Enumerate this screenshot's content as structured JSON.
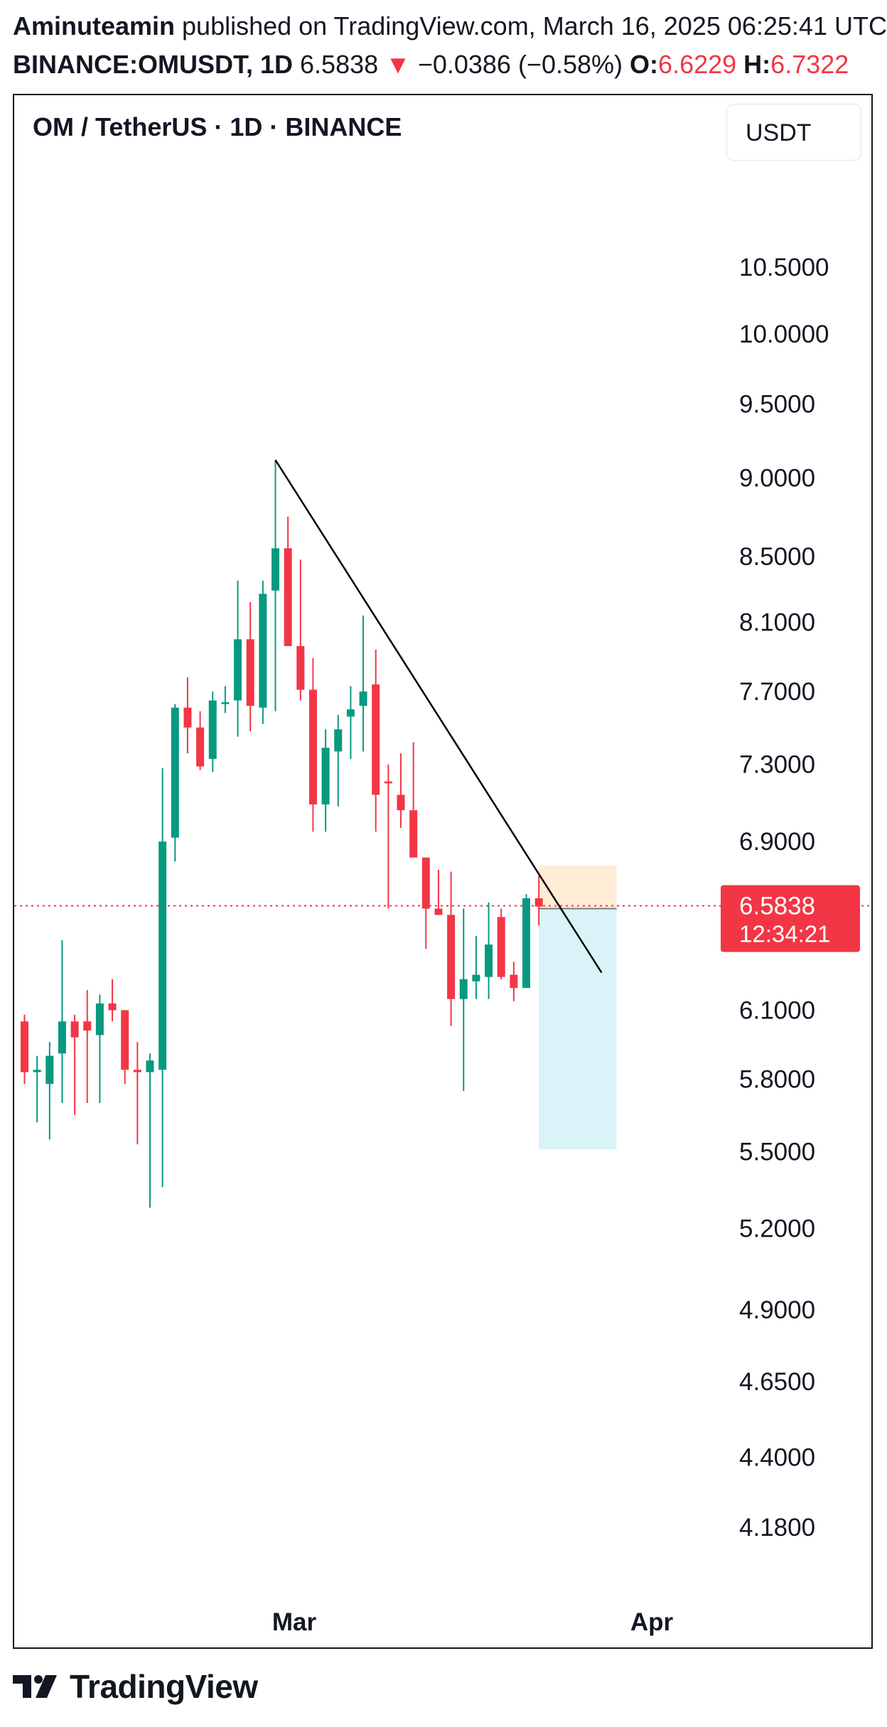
{
  "header": {
    "author": "Aminuteamin",
    "published_text": " published on TradingView.com, March 16, 2025 06:25:41 UTC",
    "symbol": "BINANCE:OMUSDT, 1D",
    "last": "6.5838",
    "change_arrow": "▼",
    "change": "−0.0386 (−0.58%)",
    "open_label": "O:",
    "open": "6.6229",
    "high_label": "H:",
    "high": "6.7322"
  },
  "chart_header": {
    "title": "OM / TetherUS · 1D · BINANCE",
    "currency": "USDT"
  },
  "footer": {
    "brand": "TradingView"
  },
  "colors": {
    "up": "#089981",
    "down": "#f23645",
    "text": "#131722"
  },
  "chart_data": {
    "type": "candlestick",
    "y_scale": "log",
    "ylim": [
      3.92,
      12.1
    ],
    "y_ticks": [
      "10.5000",
      "10.0000",
      "9.5000",
      "9.0000",
      "8.5000",
      "8.1000",
      "7.7000",
      "7.3000",
      "6.9000",
      "6.1000",
      "5.8000",
      "5.5000",
      "5.2000",
      "4.9000",
      "4.6500",
      "4.4000",
      "4.1800"
    ],
    "x_ticks": [
      {
        "index": 21.5,
        "label": "Mar"
      },
      {
        "index": 50,
        "label": "Apr"
      }
    ],
    "last_price": {
      "value": 6.5838,
      "label": "6.5838",
      "countdown": "12:34:21"
    },
    "candles": [
      {
        "o": 6.05,
        "h": 6.08,
        "l": 5.78,
        "c": 5.83
      },
      {
        "o": 5.83,
        "h": 5.9,
        "l": 5.62,
        "c": 5.84
      },
      {
        "o": 5.78,
        "h": 5.96,
        "l": 5.55,
        "c": 5.9
      },
      {
        "o": 5.91,
        "h": 6.42,
        "l": 5.7,
        "c": 6.05
      },
      {
        "o": 6.05,
        "h": 6.08,
        "l": 5.65,
        "c": 5.98
      },
      {
        "o": 6.05,
        "h": 6.19,
        "l": 5.7,
        "c": 6.01
      },
      {
        "o": 5.99,
        "h": 6.17,
        "l": 5.7,
        "c": 6.13
      },
      {
        "o": 6.13,
        "h": 6.24,
        "l": 6.05,
        "c": 6.1
      },
      {
        "o": 6.1,
        "h": 6.1,
        "l": 5.78,
        "c": 5.84
      },
      {
        "o": 5.84,
        "h": 5.96,
        "l": 5.53,
        "c": 5.83
      },
      {
        "o": 5.83,
        "h": 5.91,
        "l": 5.28,
        "c": 5.88
      },
      {
        "o": 5.84,
        "h": 7.28,
        "l": 5.36,
        "c": 6.9
      },
      {
        "o": 6.92,
        "h": 7.63,
        "l": 6.8,
        "c": 7.61
      },
      {
        "o": 7.61,
        "h": 7.78,
        "l": 7.36,
        "c": 7.5
      },
      {
        "o": 7.5,
        "h": 7.59,
        "l": 7.27,
        "c": 7.29
      },
      {
        "o": 7.33,
        "h": 7.7,
        "l": 7.26,
        "c": 7.65
      },
      {
        "o": 7.63,
        "h": 7.73,
        "l": 7.58,
        "c": 7.64
      },
      {
        "o": 7.65,
        "h": 8.35,
        "l": 7.45,
        "c": 8.0
      },
      {
        "o": 8.0,
        "h": 8.22,
        "l": 7.48,
        "c": 7.62
      },
      {
        "o": 7.61,
        "h": 8.35,
        "l": 7.52,
        "c": 8.27
      },
      {
        "o": 8.29,
        "h": 9.12,
        "l": 7.59,
        "c": 8.55
      },
      {
        "o": 8.55,
        "h": 8.75,
        "l": 7.96,
        "c": 7.96
      },
      {
        "o": 7.96,
        "h": 8.48,
        "l": 7.65,
        "c": 7.71
      },
      {
        "o": 7.71,
        "h": 7.89,
        "l": 6.95,
        "c": 7.09
      },
      {
        "o": 7.09,
        "h": 7.49,
        "l": 6.95,
        "c": 7.39
      },
      {
        "o": 7.37,
        "h": 7.57,
        "l": 7.08,
        "c": 7.49
      },
      {
        "o": 7.56,
        "h": 7.73,
        "l": 7.33,
        "c": 7.6
      },
      {
        "o": 7.62,
        "h": 8.14,
        "l": 7.37,
        "c": 7.7
      },
      {
        "o": 7.74,
        "h": 7.94,
        "l": 6.95,
        "c": 7.14
      },
      {
        "o": 7.21,
        "h": 7.3,
        "l": 6.57,
        "c": 7.2
      },
      {
        "o": 7.14,
        "h": 7.36,
        "l": 6.97,
        "c": 7.06
      },
      {
        "o": 7.06,
        "h": 7.42,
        "l": 6.83,
        "c": 6.82
      },
      {
        "o": 6.82,
        "h": 6.82,
        "l": 6.38,
        "c": 6.57
      },
      {
        "o": 6.57,
        "h": 6.76,
        "l": 6.54,
        "c": 6.54
      },
      {
        "o": 6.54,
        "h": 6.75,
        "l": 6.03,
        "c": 6.15
      },
      {
        "o": 6.15,
        "h": 6.57,
        "l": 5.75,
        "c": 6.24
      },
      {
        "o": 6.23,
        "h": 6.44,
        "l": 6.15,
        "c": 6.26
      },
      {
        "o": 6.25,
        "h": 6.6,
        "l": 6.15,
        "c": 6.4
      },
      {
        "o": 6.53,
        "h": 6.57,
        "l": 6.24,
        "c": 6.25
      },
      {
        "o": 6.26,
        "h": 6.32,
        "l": 6.14,
        "c": 6.2
      },
      {
        "o": 6.2,
        "h": 6.64,
        "l": 6.2,
        "c": 6.62
      },
      {
        "o": 6.62,
        "h": 6.73,
        "l": 6.49,
        "c": 6.58
      }
    ],
    "trendline": {
      "from": {
        "index": 20,
        "value": 9.12
      },
      "to": {
        "index": 46,
        "value": 6.27
      }
    },
    "position": {
      "start_index": 41.0,
      "end_index": 47.2,
      "entry": 6.57,
      "stop": 6.78,
      "target": 5.51
    }
  }
}
